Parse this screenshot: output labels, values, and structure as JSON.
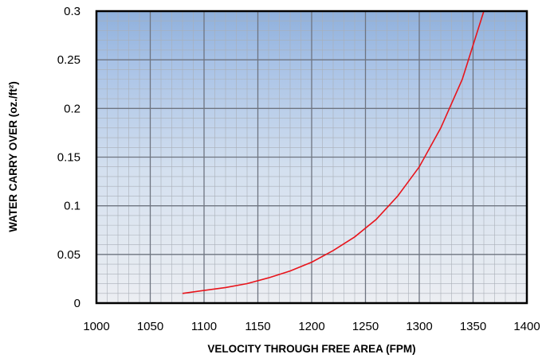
{
  "chart_data": {
    "type": "line",
    "title": "",
    "xlabel": "VELOCITY THROUGH FREE AREA (FPM)",
    "ylabel": "WATER CARRY OVER (oz./ft²)",
    "xlim": [
      1000,
      1400
    ],
    "ylim": [
      0,
      0.3
    ],
    "x_ticks": [
      "1000",
      "1050",
      "1100",
      "1150",
      "1200",
      "1250",
      "1300",
      "1350",
      "1400"
    ],
    "y_ticks": [
      "0",
      "0.05",
      "0.1",
      "0.15",
      "0.2",
      "0.25",
      "0.3"
    ],
    "grid": true,
    "legend": "none",
    "background": "gradient blue (top) to light grey (bottom)",
    "series": [
      {
        "color": "#e8141b",
        "x": [
          1080,
          1100,
          1120,
          1140,
          1160,
          1180,
          1200,
          1220,
          1240,
          1260,
          1280,
          1300,
          1320,
          1340,
          1360
        ],
        "y": [
          0.01,
          0.013,
          0.016,
          0.02,
          0.026,
          0.033,
          0.042,
          0.054,
          0.068,
          0.086,
          0.11,
          0.14,
          0.18,
          0.23,
          0.3
        ]
      }
    ]
  }
}
